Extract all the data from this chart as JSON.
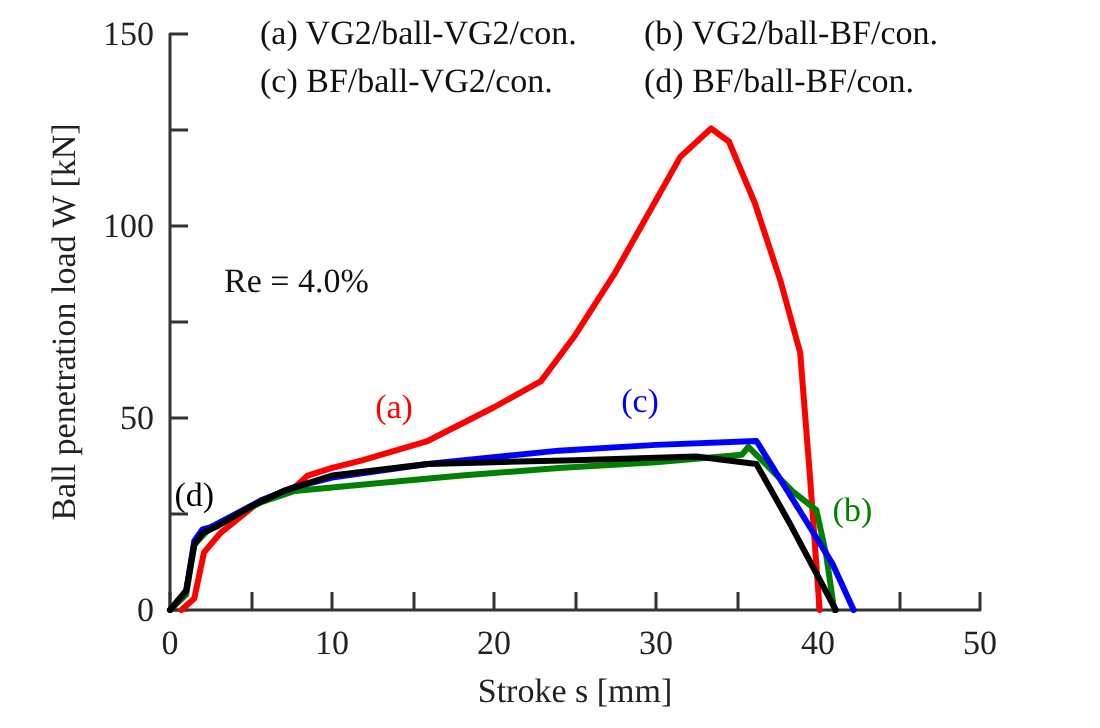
{
  "chart_data": {
    "type": "line",
    "xlabel": "Stroke s [mm]",
    "ylabel": "Ball penetration load W [kN]",
    "xlim": [
      0,
      50
    ],
    "ylim": [
      0,
      150
    ],
    "xticks": [
      0,
      {
        "value": 5,
        "label": null
      },
      10,
      {
        "value": 15,
        "label": null
      },
      20,
      {
        "value": 25,
        "label": null
      },
      30,
      {
        "value": 35,
        "label": null
      },
      40,
      {
        "value": 45,
        "label": null
      },
      50
    ],
    "yticks": [
      0,
      {
        "value": 25,
        "label": null
      },
      50,
      {
        "value": 75,
        "label": null
      },
      100,
      {
        "value": 125,
        "label": null
      },
      150
    ],
    "grid": false,
    "legend": false,
    "marker": "none",
    "line_style": "solid",
    "annotations": [
      "(a) VG2/ball-VG2/con.",
      "(b) VG2/ball-BF/con.",
      "(c) BF/ball-VG2/con.",
      "(d) BF/ball-BF/con.",
      "Re = 4.0%"
    ],
    "series": [
      {
        "name": "(a)",
        "color": "#ff0000",
        "x": [
          0.7,
          1.5,
          2.1,
          3.1,
          5.6,
          7.7,
          8.5,
          10,
          11.8,
          15.9,
          20,
          22.9,
          25,
          27.5,
          29.9,
          31.5,
          33.4,
          34.5,
          36.1,
          37.7,
          38.9,
          39.5,
          40.1
        ],
        "values": [
          0,
          3,
          15,
          20,
          28.5,
          32,
          35,
          37,
          38.9,
          44,
          52.8,
          59.6,
          71.5,
          88,
          106,
          118,
          125.4,
          122,
          106,
          85.5,
          67,
          35,
          0
        ]
      },
      {
        "name": "(b)",
        "color": "#008000",
        "x": [
          0,
          1,
          1.5,
          2.5,
          5.6,
          7.7,
          11.8,
          18,
          24,
          30,
          35.3,
          35.7,
          38.4,
          39.9,
          40.5,
          41
        ],
        "values": [
          0,
          4,
          17,
          21.5,
          28,
          31,
          32.6,
          35,
          37,
          38.5,
          40.4,
          42.5,
          31,
          26,
          14.5,
          0
        ]
      },
      {
        "name": "(c)",
        "color": "#0000ff",
        "x": [
          0,
          1,
          1.5,
          2,
          2.5,
          5.6,
          7.7,
          10,
          15.9,
          24,
          30,
          36.2,
          39,
          40.9,
          42.2
        ],
        "values": [
          0,
          5,
          18,
          21,
          21.5,
          28.5,
          32,
          34.5,
          38,
          41.5,
          43,
          44,
          25,
          12,
          0
        ]
      },
      {
        "name": "(d)",
        "color": "#000000",
        "x": [
          0,
          1,
          1.5,
          2,
          3,
          5,
          7,
          10,
          15.9,
          20,
          25,
          32.5,
          36.2,
          38.2,
          41.1
        ],
        "values": [
          0,
          5,
          17,
          20,
          22,
          27,
          31,
          35,
          38,
          38.5,
          39,
          40,
          38,
          23,
          0
        ]
      }
    ]
  }
}
